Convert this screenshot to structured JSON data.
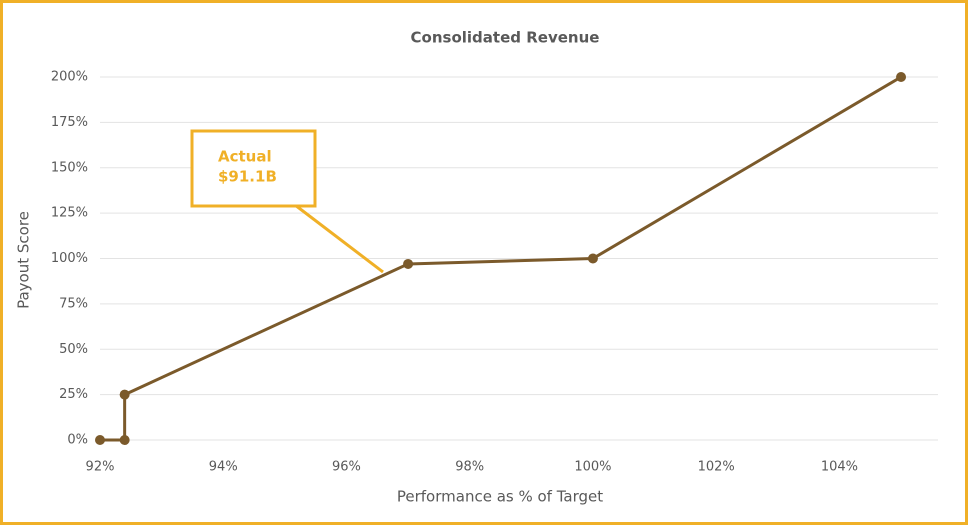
{
  "chart_data": {
    "type": "line",
    "title": "Consolidated Revenue",
    "x_label": "Performance as % of Target",
    "y_label": "Payout Score",
    "x": [
      92,
      92.4,
      92.4,
      97,
      100,
      105
    ],
    "series": [
      {
        "color": "#7b5a2b",
        "values": [
          0,
          0,
          25,
          97,
          100,
          200
        ]
      }
    ],
    "xlim": [
      92,
      105.6
    ],
    "xticks": [
      {
        "value": 92,
        "label": "92%"
      },
      {
        "value": 94,
        "label": "94%"
      },
      {
        "value": 96,
        "label": "96%"
      },
      {
        "value": 98,
        "label": "98%"
      },
      {
        "value": 100,
        "label": "100%"
      },
      {
        "value": 102,
        "label": "102%"
      },
      {
        "value": 104,
        "label": "104%"
      }
    ],
    "ylim": [
      0,
      200
    ],
    "yticks": [
      {
        "value": 0,
        "label": "0%"
      },
      {
        "value": 25,
        "label": "25%"
      },
      {
        "value": 50,
        "label": "50%"
      },
      {
        "value": 75,
        "label": "75%"
      },
      {
        "value": 100,
        "label": "100%"
      },
      {
        "value": 125,
        "label": "125%"
      },
      {
        "value": 150,
        "label": "150%"
      },
      {
        "value": 175,
        "label": "175%"
      },
      {
        "value": 200,
        "label": "200%"
      }
    ],
    "grid": true,
    "annotation": {
      "lines": [
        "Actual",
        "$91.1B"
      ],
      "color": "#f0b027"
    }
  }
}
